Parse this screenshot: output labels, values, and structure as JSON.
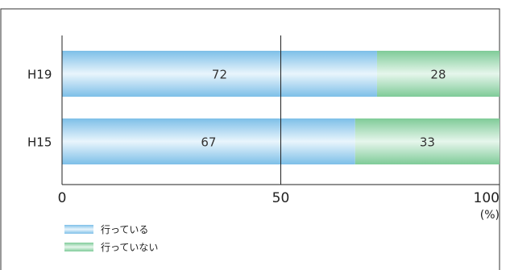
{
  "chart_data": {
    "type": "bar",
    "orientation": "horizontal",
    "stacked": true,
    "categories": [
      "H19",
      "H15"
    ],
    "series": [
      {
        "name": "行っている",
        "values": [
          72,
          67
        ],
        "color": "#8ec9ec"
      },
      {
        "name": "行っていない",
        "values": [
          28,
          33
        ],
        "color": "#8fd0a6"
      }
    ],
    "xlim": [
      0,
      100
    ],
    "xticks": [
      0,
      50,
      100
    ],
    "xunit": "(%)",
    "legend": "bottom-left",
    "grid": true
  }
}
